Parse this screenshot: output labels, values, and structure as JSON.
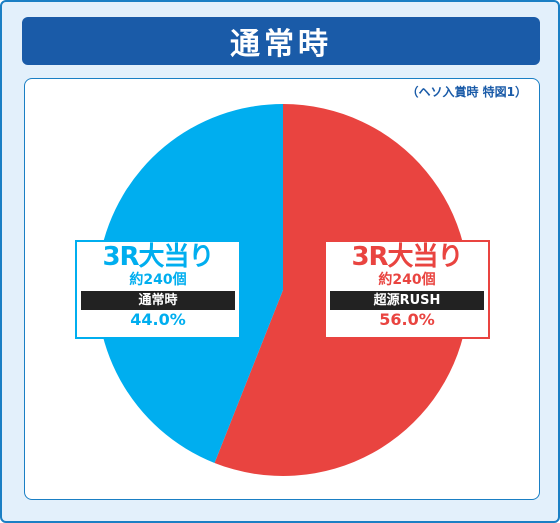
{
  "header": {
    "title": "通常時"
  },
  "note": "（ヘソ入賞時 特図1）",
  "colors": {
    "series_a": "#00aeef",
    "series_b": "#e94440"
  },
  "chart_data": {
    "type": "pie",
    "slices": [
      {
        "label": "3R大当り",
        "count": "約240個",
        "mode": "超源RUSH",
        "value": 56.0,
        "value_label": "56.0%",
        "color": "#e94440"
      },
      {
        "label": "3R大当り",
        "count": "約240個",
        "mode": "通常時",
        "value": 44.0,
        "value_label": "44.0%",
        "color": "#00aeef"
      }
    ],
    "start": "top",
    "direction": "clockwise"
  }
}
